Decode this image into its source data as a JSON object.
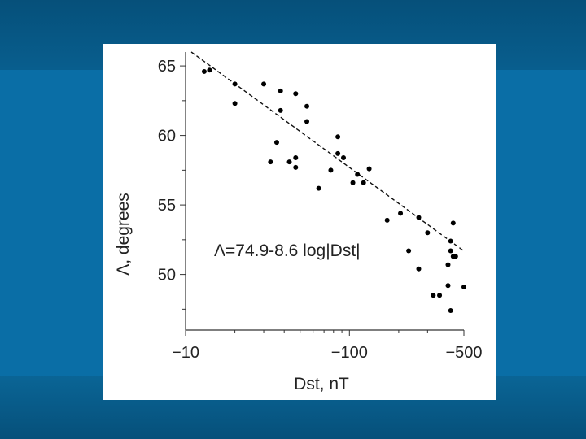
{
  "chart_data": {
    "type": "scatter",
    "xscale": "log",
    "xlabel": "Dst, nT",
    "ylabel": "Λ, degrees",
    "xlim": [
      -10,
      -500
    ],
    "ylim": [
      46,
      66
    ],
    "x_ticks": [
      {
        "value": -10,
        "label": "−10"
      },
      {
        "value": -100,
        "label": "−100"
      },
      {
        "value": -500,
        "label": "−500"
      }
    ],
    "y_ticks": [
      {
        "value": 50,
        "label": "50"
      },
      {
        "value": 55,
        "label": "55"
      },
      {
        "value": 60,
        "label": "60"
      },
      {
        "value": 65,
        "label": "65"
      }
    ],
    "annotation": "Λ=74.9-8.6 log|Dst|",
    "fit_line": {
      "intercept": 74.9,
      "slope": -8.6,
      "style": "dashed"
    },
    "points": [
      {
        "x": -13,
        "y": 64.6
      },
      {
        "x": -14,
        "y": 64.7
      },
      {
        "x": -20,
        "y": 63.7
      },
      {
        "x": -20,
        "y": 62.3
      },
      {
        "x": -30,
        "y": 63.7
      },
      {
        "x": -33,
        "y": 58.1
      },
      {
        "x": -36,
        "y": 59.5
      },
      {
        "x": -38,
        "y": 63.2
      },
      {
        "x": -38,
        "y": 61.8
      },
      {
        "x": -43,
        "y": 58.1
      },
      {
        "x": -47,
        "y": 58.4
      },
      {
        "x": -47,
        "y": 57.7
      },
      {
        "x": -47,
        "y": 63.0
      },
      {
        "x": -55,
        "y": 62.1
      },
      {
        "x": -55,
        "y": 61.0
      },
      {
        "x": -65,
        "y": 56.2
      },
      {
        "x": -77,
        "y": 57.5
      },
      {
        "x": -85,
        "y": 59.9
      },
      {
        "x": -85,
        "y": 58.7
      },
      {
        "x": -92,
        "y": 58.4
      },
      {
        "x": -105,
        "y": 56.6
      },
      {
        "x": -112,
        "y": 57.2
      },
      {
        "x": -122,
        "y": 56.6
      },
      {
        "x": -132,
        "y": 57.6
      },
      {
        "x": -170,
        "y": 53.9
      },
      {
        "x": -205,
        "y": 54.4
      },
      {
        "x": -230,
        "y": 51.7
      },
      {
        "x": -265,
        "y": 54.1
      },
      {
        "x": -265,
        "y": 50.4
      },
      {
        "x": -300,
        "y": 53.0
      },
      {
        "x": -325,
        "y": 48.5
      },
      {
        "x": -355,
        "y": 48.5
      },
      {
        "x": -400,
        "y": 49.2
      },
      {
        "x": -400,
        "y": 50.7
      },
      {
        "x": -415,
        "y": 52.4
      },
      {
        "x": -415,
        "y": 51.7
      },
      {
        "x": -415,
        "y": 47.4
      },
      {
        "x": -430,
        "y": 53.7
      },
      {
        "x": -430,
        "y": 51.3
      },
      {
        "x": -445,
        "y": 51.3
      },
      {
        "x": -500,
        "y": 49.1
      }
    ]
  }
}
